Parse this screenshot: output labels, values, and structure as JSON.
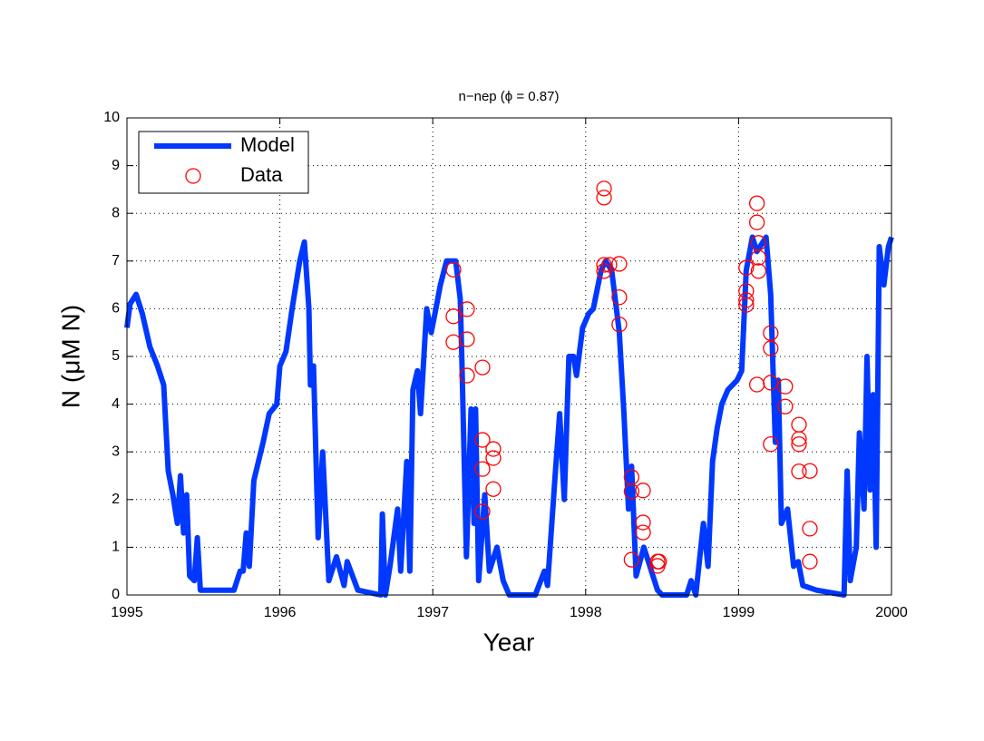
{
  "chart_data": {
    "type": "line",
    "title": "n−nep (ϕ = 0.87)",
    "xlabel": "Year",
    "ylabel": "N (μM N)",
    "xlim": [
      1995,
      2000
    ],
    "xticks": [
      1995,
      1996,
      1997,
      1998,
      1999,
      2000
    ],
    "ylim": [
      0,
      10
    ],
    "yticks": [
      0,
      1,
      2,
      3,
      4,
      5,
      6,
      7,
      8,
      9,
      10
    ],
    "grid": true,
    "legend": "upper left",
    "series": [
      {
        "name": "Model",
        "color": "#0038ff",
        "style": "line",
        "x": [
          1995.0,
          1995.02,
          1995.06,
          1995.1,
          1995.15,
          1995.2,
          1995.24,
          1995.27,
          1995.3,
          1995.33,
          1995.35,
          1995.37,
          1995.39,
          1995.41,
          1995.44,
          1995.46,
          1995.48,
          1995.6,
          1995.7,
          1995.74,
          1995.76,
          1995.78,
          1995.8,
          1995.83,
          1995.89,
          1995.93,
          1995.98,
          1996.0,
          1996.04,
          1996.08,
          1996.13,
          1996.16,
          1996.19,
          1996.2,
          1996.22,
          1996.25,
          1996.28,
          1996.32,
          1996.37,
          1996.42,
          1996.44,
          1996.51,
          1996.66,
          1996.67,
          1996.69,
          1996.72,
          1996.77,
          1996.79,
          1996.83,
          1996.85,
          1996.87,
          1996.9,
          1996.92,
          1996.96,
          1996.99,
          1997.02,
          1997.05,
          1997.09,
          1997.15,
          1997.18,
          1997.19,
          1997.22,
          1997.25,
          1997.27,
          1997.28,
          1997.3,
          1997.34,
          1997.37,
          1997.42,
          1997.46,
          1997.5,
          1997.67,
          1997.73,
          1997.75,
          1997.77,
          1997.8,
          1997.83,
          1997.86,
          1997.89,
          1997.92,
          1997.94,
          1997.98,
          1998.02,
          1998.05,
          1998.1,
          1998.13,
          1998.17,
          1998.22,
          1998.25,
          1998.28,
          1998.3,
          1998.33,
          1998.38,
          1998.47,
          1998.5,
          1998.66,
          1998.69,
          1998.72,
          1998.77,
          1998.8,
          1998.83,
          1998.86,
          1998.89,
          1998.93,
          1998.99,
          1999.02,
          1999.05,
          1999.09,
          1999.12,
          1999.18,
          1999.21,
          1999.24,
          1999.26,
          1999.28,
          1999.32,
          1999.36,
          1999.39,
          1999.42,
          1999.51,
          1999.69,
          1999.71,
          1999.73,
          1999.77,
          1999.79,
          1999.82,
          1999.84,
          1999.86,
          1999.88,
          1999.9,
          1999.92,
          1999.95,
          1999.98,
          2000.0
        ],
        "values": [
          5.6,
          6.1,
          6.3,
          5.9,
          5.2,
          4.8,
          4.4,
          2.6,
          2.1,
          1.5,
          2.5,
          1.3,
          2.1,
          0.4,
          0.3,
          1.2,
          0.1,
          0.1,
          0.1,
          0.5,
          0.5,
          1.3,
          0.6,
          2.4,
          3.2,
          3.8,
          4.0,
          4.8,
          5.1,
          6.0,
          7.0,
          7.4,
          6.0,
          4.4,
          4.8,
          1.2,
          3.0,
          0.3,
          0.8,
          0.2,
          0.7,
          0.1,
          0.0,
          1.7,
          0.0,
          0.6,
          1.8,
          0.5,
          2.8,
          0.5,
          4.3,
          4.7,
          3.8,
          6.0,
          5.5,
          6.0,
          6.5,
          7.0,
          7.0,
          6.2,
          5.0,
          0.8,
          3.9,
          1.5,
          3.9,
          0.3,
          2.1,
          0.5,
          1.0,
          0.3,
          0.0,
          0.0,
          0.5,
          0.2,
          1.1,
          2.5,
          3.8,
          2.0,
          5.0,
          5.0,
          4.6,
          5.6,
          5.9,
          6.0,
          6.8,
          7.0,
          6.8,
          5.5,
          3.8,
          1.8,
          2.7,
          0.4,
          1.0,
          0.1,
          0.0,
          0.0,
          0.3,
          0.0,
          1.5,
          0.6,
          2.8,
          3.5,
          4.0,
          4.3,
          4.5,
          4.7,
          6.8,
          7.5,
          7.2,
          7.5,
          6.3,
          3.2,
          4.5,
          1.5,
          1.8,
          0.6,
          0.7,
          0.2,
          0.1,
          0.0,
          2.6,
          0.3,
          1.0,
          3.4,
          1.8,
          5.0,
          2.2,
          4.2,
          1.0,
          7.3,
          6.5,
          7.3,
          7.5
        ]
      },
      {
        "name": "Data",
        "color": "#ff0000",
        "style": "marker",
        "x": [
          1997.135,
          1997.135,
          1997.135,
          1997.224,
          1997.224,
          1997.224,
          1997.325,
          1997.325,
          1997.325,
          1997.325,
          1997.396,
          1997.396,
          1997.396,
          1998.12,
          1998.12,
          1998.12,
          1998.12,
          1998.155,
          1998.22,
          1998.22,
          1998.22,
          1998.3,
          1998.3,
          1998.3,
          1998.375,
          1998.375,
          1998.375,
          1998.47,
          1998.47,
          1998.48,
          1999.05,
          1999.05,
          1999.05,
          1999.05,
          1999.12,
          1999.12,
          1999.13,
          1999.13,
          1999.13,
          1999.12,
          1999.21,
          1999.21,
          1999.21,
          1999.21,
          1999.305,
          1999.305,
          1999.395,
          1999.395,
          1999.395,
          1999.395,
          1999.466,
          1999.466,
          1999.466
        ],
        "values": [
          6.82,
          5.84,
          5.3,
          5.99,
          5.36,
          4.6,
          4.77,
          3.25,
          2.64,
          1.75,
          3.06,
          2.87,
          2.22,
          8.52,
          8.33,
          6.92,
          6.79,
          6.92,
          6.94,
          6.24,
          5.67,
          2.47,
          2.17,
          0.74,
          2.19,
          1.52,
          1.31,
          0.7,
          0.61,
          0.7,
          6.86,
          6.37,
          6.18,
          6.08,
          8.21,
          7.81,
          7.38,
          7.07,
          6.79,
          4.41,
          5.49,
          5.17,
          4.45,
          3.16,
          4.37,
          3.95,
          3.57,
          3.27,
          3.16,
          2.59,
          2.6,
          1.39,
          0.7
        ]
      }
    ]
  }
}
